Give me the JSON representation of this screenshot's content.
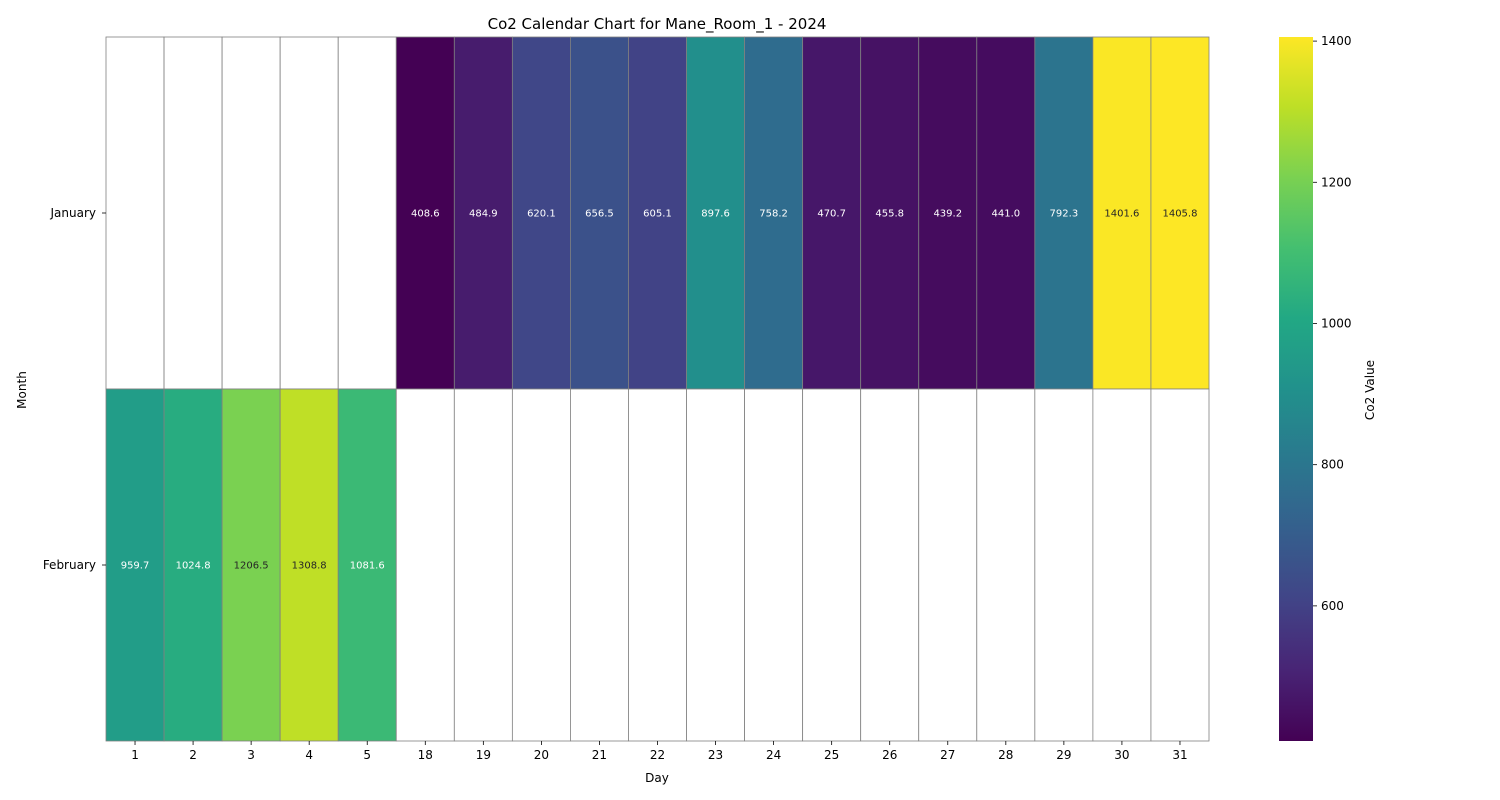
{
  "chart_data": {
    "type": "heatmap",
    "title": "Co2 Calendar Chart for Mane_Room_1 - 2024",
    "xlabel": "Day",
    "ylabel": "Month",
    "x_categories": [
      "1",
      "2",
      "3",
      "4",
      "5",
      "18",
      "19",
      "20",
      "21",
      "22",
      "23",
      "24",
      "25",
      "26",
      "27",
      "28",
      "29",
      "30",
      "31"
    ],
    "y_categories": [
      "January",
      "February"
    ],
    "values": [
      [
        null,
        null,
        null,
        null,
        null,
        408.6,
        484.9,
        620.1,
        656.5,
        605.1,
        897.6,
        758.2,
        470.7,
        455.8,
        439.2,
        441.0,
        792.3,
        1401.6,
        1405.8
      ],
      [
        959.7,
        1024.8,
        1206.5,
        1308.8,
        1081.6,
        null,
        null,
        null,
        null,
        null,
        null,
        null,
        null,
        null,
        null,
        null,
        null,
        null,
        null
      ]
    ],
    "value_labels": [
      [
        "",
        "",
        "",
        "",
        "",
        "408.6",
        "484.9",
        "620.1",
        "656.5",
        "605.1",
        "897.6",
        "758.2",
        "470.7",
        "455.8",
        "439.2",
        "441.0",
        "792.3",
        "1401.6",
        "1405.8"
      ],
      [
        "959.7",
        "1024.8",
        "1206.5",
        "1308.8",
        "1081.6",
        "",
        "",
        "",
        "",
        "",
        "",
        "",
        "",
        "",
        "",
        "",
        "",
        "",
        ""
      ]
    ],
    "colorbar": {
      "label": "Co2 Value",
      "colormap": "viridis",
      "vmin": 408.6,
      "vmax": 1405.8,
      "ticks": [
        600,
        800,
        1000,
        1200,
        1400
      ],
      "tick_labels": [
        "600",
        "800",
        "1000",
        "1200",
        "1400"
      ]
    },
    "grid": true
  }
}
